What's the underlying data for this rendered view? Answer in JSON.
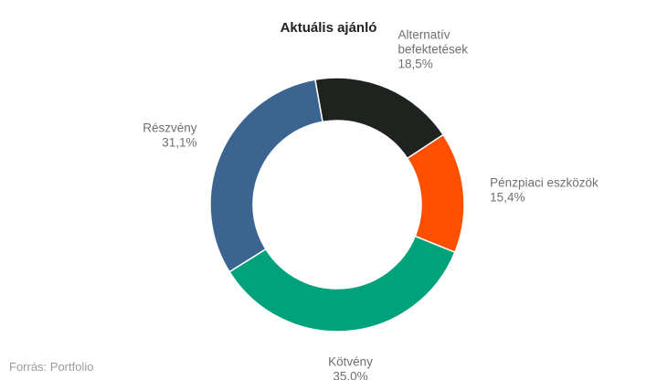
{
  "chart_data": {
    "type": "pie",
    "title": "Aktuális ajánló",
    "donut": true,
    "legend": "none (direct labels)",
    "slices": [
      {
        "name": "Alternatív befektetések",
        "label_lines": [
          "Alternatív",
          "befektetések"
        ],
        "value": 18.5,
        "value_label": "18,5%",
        "color": "#1e2320"
      },
      {
        "name": "Pénzpiaci eszközök",
        "label_lines": [
          "Pénzpiaci eszközök"
        ],
        "value": 15.4,
        "value_label": "15,4%",
        "color": "#fc4f00"
      },
      {
        "name": "Kötvény",
        "label_lines": [
          "Kötvény"
        ],
        "value": 35.0,
        "value_label": "35,0%",
        "color": "#00a27c"
      },
      {
        "name": "Részvény",
        "label_lines": [
          "Részvény"
        ],
        "value": 31.1,
        "value_label": "31,1%",
        "color": "#3b6590"
      }
    ]
  },
  "source": "Forrás: Portfolio"
}
